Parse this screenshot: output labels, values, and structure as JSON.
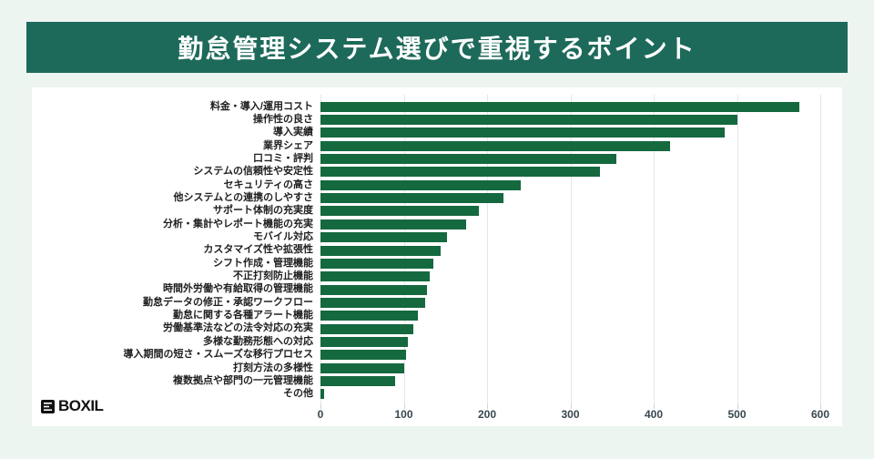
{
  "header": {
    "title": "勤怠管理システム選びで重視するポイント"
  },
  "colors": {
    "banner_background": "#1d6a5a",
    "bar_color": "#15693f",
    "page_background": "#edf5f0",
    "card_background": "#ffffff",
    "gridline_color": "#e4e7e6",
    "axis_label_color": "#37474f",
    "category_label_color": "#1f1f1f"
  },
  "chart_data": {
    "type": "bar",
    "orientation": "horizontal",
    "title": "勤怠管理システム選びで重視するポイント",
    "xlabel": "",
    "ylabel": "",
    "xlim": [
      0,
      600
    ],
    "x_ticks": [
      0,
      100,
      200,
      300,
      400,
      500,
      600
    ],
    "grid": true,
    "legend": false,
    "categories": [
      "料金・導入/運用コスト",
      "操作性の良さ",
      "導入実績",
      "業界シェア",
      "口コミ・評判",
      "システムの信頼性や安定性",
      "セキュリティの高さ",
      "他システムとの連携のしやすさ",
      "サポート体制の充実度",
      "分析・集計やレポート機能の充実",
      "モバイル対応",
      "カスタマイズ性や拡張性",
      "シフト作成・管理機能",
      "不正打刻防止機能",
      "時間外労働や有給取得の管理機能",
      "勤怠データの修正・承認ワークフロー",
      "勤怠に関する各種アラート機能",
      "労働基準法などの法令対応の充実",
      "多様な勤務形態への対応",
      "導入期間の短さ・スムーズな移行プロセス",
      "打刻方法の多様性",
      "複数拠点や部門の一元管理機能",
      "その他"
    ],
    "values": [
      575,
      500,
      485,
      420,
      355,
      335,
      240,
      220,
      190,
      175,
      152,
      144,
      136,
      131,
      128,
      126,
      117,
      112,
      105,
      103,
      100,
      90,
      4
    ]
  },
  "footer": {
    "logo_text": "BOXIL"
  }
}
